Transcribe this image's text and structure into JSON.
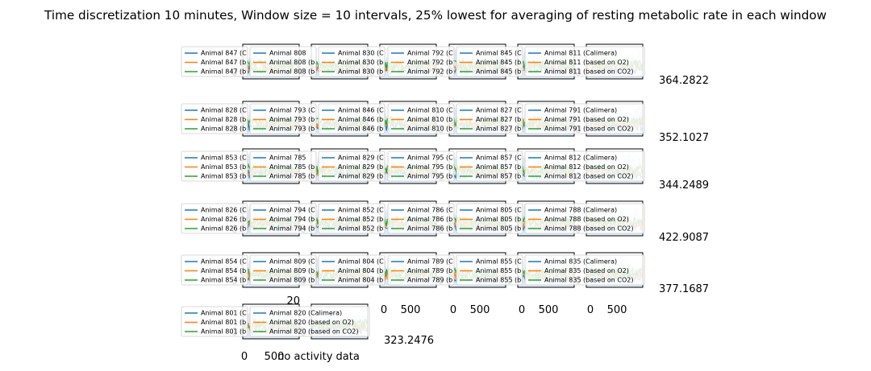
{
  "figure": {
    "title": "Time discretization 10 minutes, Window size = 10 intervals, 25% lowest for averaging of resting metabolic rate in each window",
    "xlabel_fragments": [
      "500",
      "no activity data"
    ]
  },
  "colors": {
    "calimera": "#1f77b4",
    "o2": "#ff7f0e",
    "co2": "#2ca02c",
    "background": "#ffffff",
    "axis": "#000000"
  },
  "chart_data": {
    "type": "line",
    "grid": false,
    "legend_placement": "upper-left",
    "series_suffixes": [
      "(Calimera)",
      "(based on O2)",
      "(based on CO2)"
    ],
    "x_ticks": [
      "0",
      "500"
    ],
    "y_ticks": [
      "0",
      "20",
      "500"
    ],
    "panels": [
      {
        "animal": "847",
        "legend": [
          "Animal 847 (C",
          "Animal 847 (b",
          "Animal 847 (b"
        ]
      },
      {
        "animal": "808",
        "legend": [
          "Animal 808",
          "Animal 808 (b",
          "Animal 808 (b"
        ]
      },
      {
        "animal": "830",
        "legend": [
          "Animal 830 (C",
          "Animal 830 (b",
          "Animal 830 (b"
        ]
      },
      {
        "animal": "792",
        "legend": [
          "Animal 792 (C",
          "Animal 792 (b",
          "Animal 792 (b"
        ]
      },
      {
        "animal": "845",
        "legend": [
          "Animal 845 (C",
          "Animal 845 (b",
          "Animal 845 (b"
        ]
      },
      {
        "animal": "811",
        "legend": [
          "Animal 811 (Calimera)",
          "Animal 811 (based on O2)",
          "Animal 811 (based on CO2)"
        ],
        "right_value": "364.2822"
      },
      {
        "animal": "828",
        "legend": [
          "Animal 828 (C",
          "Animal 828 (b",
          "Animal 828 (b"
        ]
      },
      {
        "animal": "793",
        "legend": [
          "Animal 793 (C",
          "Animal 793 (b",
          "Animal 793 (b"
        ]
      },
      {
        "animal": "846",
        "legend": [
          "Animal 846 (C",
          "Animal 846 (b",
          "Animal 846 (b"
        ]
      },
      {
        "animal": "810",
        "legend": [
          "Animal 810 (C",
          "Animal 810 (b",
          "Animal 810 (b"
        ]
      },
      {
        "animal": "827",
        "legend": [
          "Animal 827 (C",
          "Animal 827 (b",
          "Animal 827 (b"
        ]
      },
      {
        "animal": "791",
        "legend": [
          "Animal 791 (Calimera)",
          "Animal 791 (based on O2)",
          "Animal 791 (based on CO2)"
        ],
        "right_value": "352.1027"
      },
      {
        "animal": "853",
        "legend": [
          "Animal 853 (C",
          "Animal 853 (b",
          "Animal 853 (b"
        ]
      },
      {
        "animal": "785",
        "legend": [
          "Animal 785",
          "Animal 785 (b",
          "Animal 785 (b"
        ]
      },
      {
        "animal": "829",
        "legend": [
          "Animal 829 (C",
          "Animal 829 (b",
          "Animal 829 (b"
        ]
      },
      {
        "animal": "795",
        "legend": [
          "Animal 795 (C",
          "Animal 795 (b",
          "Animal 795 (b"
        ]
      },
      {
        "animal": "857",
        "legend": [
          "Animal 857 (C",
          "Animal 857 (b",
          "Animal 857 (b"
        ]
      },
      {
        "animal": "812",
        "legend": [
          "Animal 812 (Calimera)",
          "Animal 812 (based on O2)",
          "Animal 812 (based on CO2)"
        ],
        "right_value": "344.2489"
      },
      {
        "animal": "826",
        "legend": [
          "Animal 826 (C",
          "Animal 826 (b",
          "Animal 826 (b"
        ]
      },
      {
        "animal": "794",
        "legend": [
          "Animal 794 (C",
          "Animal 794 (b",
          "Animal 794 (b"
        ]
      },
      {
        "animal": "852",
        "legend": [
          "Animal 852 (C",
          "Animal 852 (b",
          "Animal 852 (b"
        ]
      },
      {
        "animal": "786",
        "legend": [
          "Animal 786 (C",
          "Animal 786 (b",
          "Animal 786 (b"
        ]
      },
      {
        "animal": "805",
        "legend": [
          "Animal 805 (C",
          "Animal 805 (b",
          "Animal 805 (b"
        ]
      },
      {
        "animal": "788",
        "legend": [
          "Animal 788 (Calimera)",
          "Animal 788 (based on O2)",
          "Animal 788 (based on CO2)"
        ],
        "right_value": "422.9087"
      },
      {
        "animal": "854",
        "legend": [
          "Animal 854 (C",
          "Animal 854 (b",
          "Animal 854 (b"
        ]
      },
      {
        "animal": "809",
        "legend": [
          "Animal 809 (C",
          "Animal 809 (b",
          "Animal 809 (b"
        ]
      },
      {
        "animal": "804",
        "legend": [
          "Animal 804 (C",
          "Animal 804 (b",
          "Animal 804 (b"
        ]
      },
      {
        "animal": "789",
        "legend": [
          "Animal 789 (C",
          "Animal 789 (b",
          "Animal 789 (b"
        ]
      },
      {
        "animal": "855",
        "legend": [
          "Animal 855 (C",
          "Animal 855 (b",
          "Animal 855 (b"
        ]
      },
      {
        "animal": "835",
        "legend": [
          "Animal 835 (Calimera)",
          "Animal 835 (based on O2)",
          "Animal 835 (based on CO2)"
        ],
        "right_value": "377.1687"
      },
      {
        "animal": "801",
        "legend": [
          "Animal 801 (C",
          "Animal 801 (b",
          "Animal 801 (b"
        ]
      },
      {
        "animal": "820",
        "legend": [
          "Animal 820 (Calimera)",
          "Animal 820 (based on O2)",
          "Animal 820 (based on CO2)"
        ],
        "right_value": "323.2476"
      }
    ]
  }
}
